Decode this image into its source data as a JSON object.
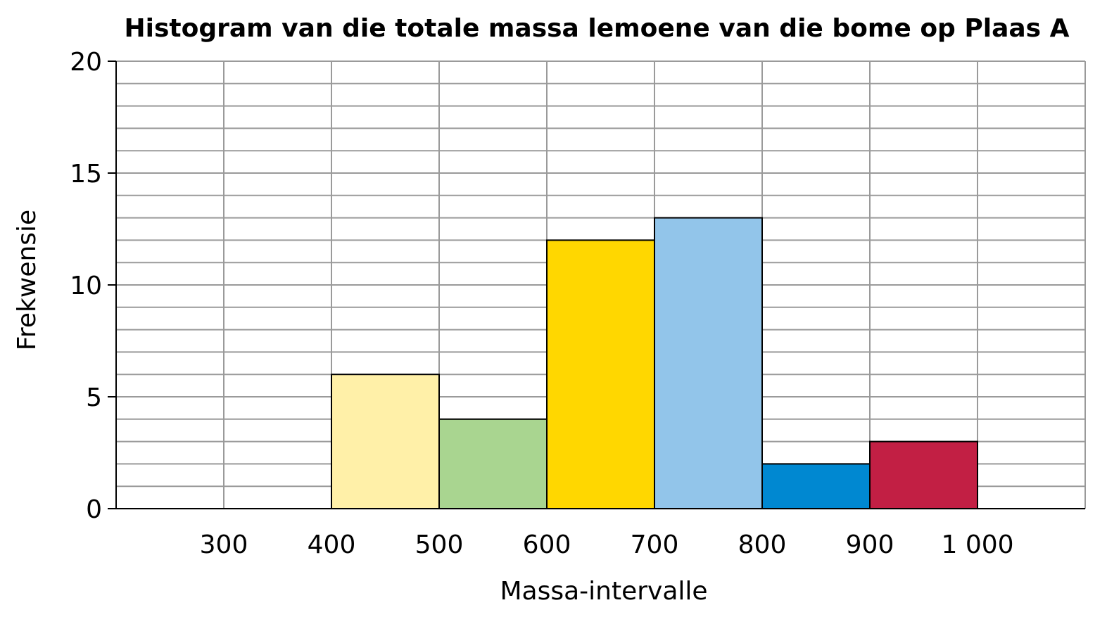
{
  "chart_data": {
    "type": "bar",
    "title": "Histogram van die totale massa lemoene van die bome op Plaas A",
    "xlabel": "Massa-intervalle",
    "ylabel": "Frekwensie",
    "xlim": [
      200,
      1100
    ],
    "ylim": [
      0,
      20
    ],
    "x_ticks": [
      300,
      400,
      500,
      600,
      700,
      800,
      900,
      1000
    ],
    "x_tick_labels": [
      "300",
      "400",
      "500",
      "600",
      "700",
      "800",
      "900",
      "1 000"
    ],
    "y_ticks": [
      0,
      5,
      10,
      15,
      20
    ],
    "y_tick_labels": [
      "0",
      "5",
      "10",
      "15",
      "20"
    ],
    "y_grid_step": 1,
    "grid": true,
    "bins": [
      {
        "from": 400,
        "to": 500,
        "value": 6,
        "color": "#fff0a8"
      },
      {
        "from": 500,
        "to": 600,
        "value": 4,
        "color": "#a9d590"
      },
      {
        "from": 600,
        "to": 700,
        "value": 12,
        "color": "#ffd700"
      },
      {
        "from": 700,
        "to": 800,
        "value": 13,
        "color": "#92c5ea"
      },
      {
        "from": 800,
        "to": 900,
        "value": 2,
        "color": "#0088d1"
      },
      {
        "from": 900,
        "to": 1000,
        "value": 3,
        "color": "#c21f44"
      }
    ]
  }
}
